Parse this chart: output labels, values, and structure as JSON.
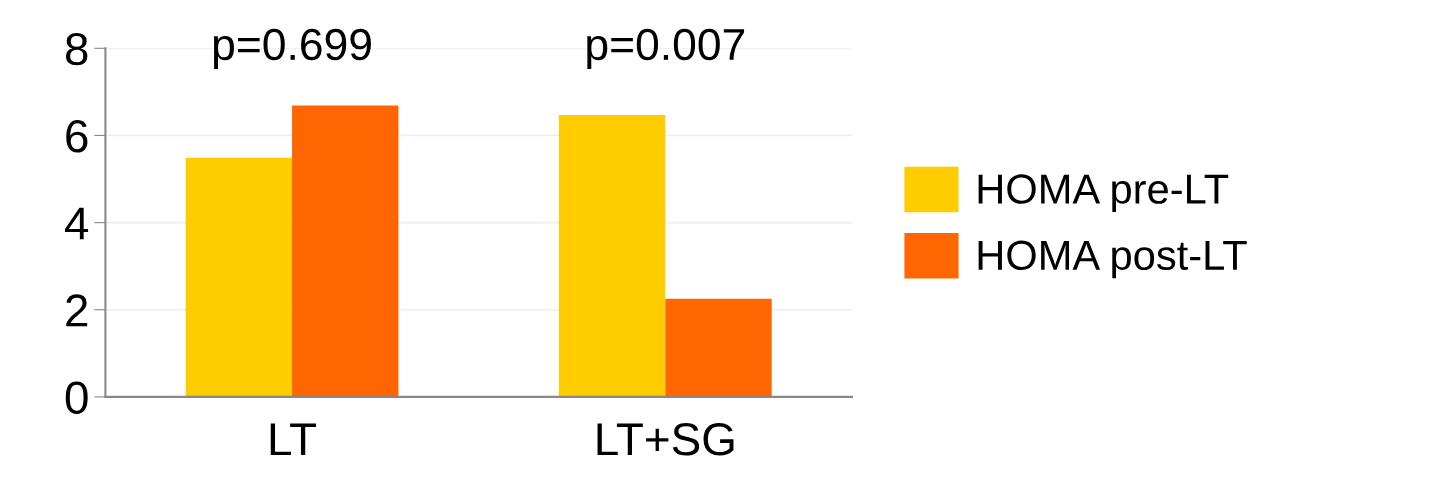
{
  "chart_data": {
    "type": "bar",
    "categories": [
      "LT",
      "LT+SG"
    ],
    "series": [
      {
        "name": "HOMA pre-LT",
        "color": "#ffcc00",
        "values": [
          5.49,
          6.47
        ]
      },
      {
        "name": "HOMA post-LT",
        "color": "#ff6600",
        "values": [
          6.69,
          2.25
        ]
      }
    ],
    "ylim": [
      0,
      8
    ],
    "yticks": [
      0,
      2,
      4,
      6,
      8
    ],
    "grid": "y",
    "legend": "right",
    "annotations": [
      "p=0.699",
      "p=0.007"
    ]
  }
}
